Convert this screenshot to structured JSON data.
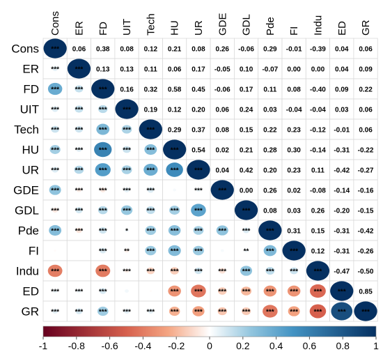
{
  "chart_data": {
    "type": "heatmap",
    "title": "",
    "variables": [
      "Cons",
      "ER",
      "FD",
      "UIT",
      "Tech",
      "HU",
      "UR",
      "GDE",
      "GDL",
      "Pde",
      "FI",
      "Indu",
      "ED",
      "GR"
    ],
    "upper_triangle": "correlation coefficients",
    "lower_triangle": "significance stars on colored circles sized by |r|",
    "matrix": [
      [
        1,
        0.06,
        0.38,
        0.08,
        0.12,
        0.21,
        0.08,
        0.26,
        -0.06,
        0.29,
        -0.01,
        -0.39,
        0.04,
        0.06
      ],
      [
        0.06,
        1,
        0.13,
        0.13,
        0.11,
        0.06,
        0.17,
        -0.05,
        0.1,
        -0.07,
        0.0,
        0.0,
        0.04,
        0.09
      ],
      [
        0.38,
        0.13,
        1,
        0.16,
        0.32,
        0.58,
        0.45,
        -0.06,
        0.17,
        0.11,
        0.08,
        -0.4,
        0.09,
        0.22
      ],
      [
        0.08,
        0.13,
        0.16,
        1,
        0.19,
        0.12,
        0.2,
        0.06,
        0.24,
        0.03,
        -0.04,
        -0.04,
        0.03,
        0.06
      ],
      [
        0.12,
        0.11,
        0.32,
        0.19,
        1,
        0.29,
        0.37,
        0.08,
        0.15,
        0.22,
        0.23,
        -0.12,
        -0.01,
        0.06
      ],
      [
        0.21,
        0.06,
        0.58,
        0.12,
        0.29,
        1,
        0.54,
        0.02,
        0.21,
        0.28,
        0.3,
        -0.14,
        -0.31,
        -0.22
      ],
      [
        0.08,
        0.17,
        0.45,
        0.2,
        0.37,
        0.54,
        1,
        0.04,
        0.42,
        0.2,
        0.23,
        0.11,
        -0.42,
        -0.27
      ],
      [
        0.26,
        -0.05,
        -0.06,
        0.06,
        0.08,
        0.02,
        0.04,
        1,
        0.0,
        0.26,
        0.02,
        -0.08,
        -0.14,
        -0.16
      ],
      [
        -0.06,
        0.1,
        0.17,
        0.24,
        0.15,
        0.21,
        0.42,
        0.0,
        1,
        0.08,
        0.03,
        0.26,
        -0.2,
        -0.15
      ],
      [
        0.29,
        -0.07,
        0.11,
        0.03,
        0.22,
        0.28,
        0.2,
        0.26,
        0.08,
        1,
        0.31,
        0.15,
        -0.31,
        -0.42
      ],
      [
        -0.01,
        0.0,
        0.08,
        -0.04,
        0.23,
        0.3,
        0.23,
        0.02,
        0.03,
        0.31,
        1,
        0.12,
        -0.31,
        -0.26
      ],
      [
        -0.39,
        0.0,
        -0.4,
        -0.04,
        -0.12,
        -0.14,
        0.11,
        -0.08,
        0.26,
        0.15,
        0.12,
        1,
        -0.47,
        -0.5
      ],
      [
        0.04,
        0.04,
        0.09,
        0.03,
        -0.01,
        -0.31,
        -0.42,
        -0.14,
        -0.2,
        -0.31,
        -0.31,
        -0.47,
        1,
        0.85
      ],
      [
        0.06,
        0.09,
        0.22,
        0.06,
        0.06,
        -0.22,
        -0.27,
        -0.16,
        -0.15,
        -0.42,
        -0.26,
        -0.5,
        0.85,
        1
      ]
    ],
    "significance": [
      [
        "***",
        "",
        "",
        "",
        "",
        "",
        "",
        "",
        "",
        "",
        "",
        "",
        "",
        ""
      ],
      [
        "***",
        "***",
        "",
        "",
        "",
        "",
        "",
        "",
        "",
        "",
        "",
        "",
        "",
        ""
      ],
      [
        "***",
        "***",
        "***",
        "",
        "",
        "",
        "",
        "",
        "",
        "",
        "",
        "",
        "",
        ""
      ],
      [
        "***",
        "***",
        "***",
        "***",
        "",
        "",
        "",
        "",
        "",
        "",
        "",
        "",
        "",
        ""
      ],
      [
        "***",
        "***",
        "***",
        "***",
        "***",
        "",
        "",
        "",
        "",
        "",
        "",
        "",
        "",
        ""
      ],
      [
        "***",
        "***",
        "***",
        "***",
        "***",
        "***",
        "",
        "",
        "",
        "",
        "",
        "",
        "",
        ""
      ],
      [
        "***",
        "***",
        "***",
        "***",
        "***",
        "***",
        "***",
        "",
        "",
        "",
        "",
        "",
        "",
        ""
      ],
      [
        "***",
        "***",
        "***",
        "***",
        "***",
        "",
        "***",
        "***",
        "",
        "",
        "",
        "",
        "",
        ""
      ],
      [
        "***",
        "***",
        "***",
        "***",
        "***",
        "***",
        "***",
        "",
        "***",
        "",
        "",
        "",
        "",
        ""
      ],
      [
        "***",
        "***",
        "***",
        "*",
        "***",
        "***",
        "***",
        "***",
        "***",
        "***",
        "",
        "",
        "",
        ""
      ],
      [
        "",
        "",
        "***",
        "**",
        "***",
        "***",
        "***",
        "",
        "**",
        "***",
        "***",
        "",
        "",
        ""
      ],
      [
        "***",
        "",
        "***",
        "***",
        "***",
        "***",
        "***",
        "***",
        "***",
        "***",
        "***",
        "***",
        "",
        ""
      ],
      [
        "***",
        "***",
        "***",
        "",
        "",
        "***",
        "***",
        "***",
        "***",
        "***",
        "***",
        "***",
        "***",
        ""
      ],
      [
        "***",
        "***",
        "***",
        "***",
        "***",
        "***",
        "***",
        "***",
        "***",
        "***",
        "***",
        "***",
        "***",
        "***"
      ]
    ],
    "colorbar": {
      "range": [
        -1,
        1
      ],
      "ticks": [
        "-1",
        "-0.8",
        "-0.6",
        "-0.4",
        "-0.2",
        "0",
        "0.2",
        "0.4",
        "0.6",
        "0.8",
        "1"
      ],
      "colors": {
        "negative": "#67001F",
        "mid_negative": "#F4A582",
        "zero": "#FFFFFF",
        "mid_positive": "#92C5DE",
        "positive": "#053061"
      },
      "placement": "bottom"
    }
  }
}
